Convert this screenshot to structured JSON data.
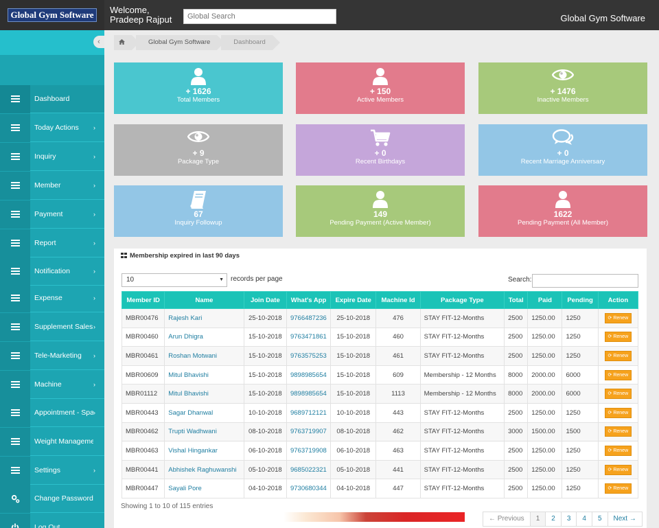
{
  "header": {
    "logo_text": "Global Gym Software",
    "welcome": "Welcome,",
    "user_name": "Pradeep Rajput",
    "search_placeholder": "Global Search",
    "brand": "Global Gym Software"
  },
  "sidebar": {
    "items": [
      {
        "label": "Dashboard",
        "icon": "menu-icon",
        "arrow": ""
      },
      {
        "label": "Today Actions",
        "icon": "menu-icon",
        "arrow": "›"
      },
      {
        "label": "Inquiry",
        "icon": "menu-icon",
        "arrow": "›"
      },
      {
        "label": "Member",
        "icon": "menu-icon",
        "arrow": "›"
      },
      {
        "label": "Payment",
        "icon": "menu-icon",
        "arrow": "›"
      },
      {
        "label": "Report",
        "icon": "menu-icon",
        "arrow": "›"
      },
      {
        "label": "Notification",
        "icon": "menu-icon",
        "arrow": "›"
      },
      {
        "label": "Expense",
        "icon": "menu-icon",
        "arrow": "›"
      },
      {
        "label": "Supplement Sales",
        "icon": "menu-icon",
        "arrow": "›"
      },
      {
        "label": "Tele-Marketing",
        "icon": "menu-icon",
        "arrow": "›"
      },
      {
        "label": "Machine",
        "icon": "menu-icon",
        "arrow": "›"
      },
      {
        "label": "Appointment - Spa",
        "icon": "menu-icon",
        "arrow": "›"
      },
      {
        "label": "Weight Management",
        "icon": "menu-icon",
        "arrow": ""
      },
      {
        "label": "Settings",
        "icon": "menu-icon",
        "arrow": "›"
      },
      {
        "label": "Change Password",
        "icon": "cogs-icon",
        "arrow": ""
      },
      {
        "label": "Log Out",
        "icon": "power-icon",
        "arrow": ""
      }
    ],
    "collapse_glyph": "‹"
  },
  "breadcrumb": {
    "home_icon": "home-icon",
    "items": [
      "Global Gym Software",
      "Dashboard"
    ]
  },
  "tiles": [
    {
      "value": "+ 1626",
      "label": "Total Members",
      "icon": "user-icon",
      "color": "#4ac6cf"
    },
    {
      "value": "+ 150",
      "label": "Active Members",
      "icon": "user-icon",
      "color": "#e27b8c"
    },
    {
      "value": "+ 1476",
      "label": "Inactive Members",
      "icon": "eye-icon",
      "color": "#a7c97b"
    },
    {
      "value": "+ 9",
      "label": "Package Type",
      "icon": "eye-icon",
      "color": "#b5b5b5"
    },
    {
      "value": "+ 0",
      "label": "Recent Birthdays",
      "icon": "cart-icon",
      "color": "#c5a6da"
    },
    {
      "value": "+ 0",
      "label": "Recent Marriage Anniversary",
      "icon": "comments-icon",
      "color": "#93c6e6"
    },
    {
      "value": "67",
      "label": "Inquiry Followup",
      "icon": "book-icon",
      "color": "#93c6e6"
    },
    {
      "value": "149",
      "label": "Pending Payment (Active Member)",
      "icon": "user-icon",
      "color": "#a7c97b"
    },
    {
      "value": "1622",
      "label": "Pending Payment (All Member)",
      "icon": "user-icon",
      "color": "#e27b8c"
    }
  ],
  "panel": {
    "title": "Membership expired in last 90 days",
    "length_value": "10",
    "length_label": "records per page",
    "search_label": "Search:",
    "columns": [
      "Member ID",
      "Name",
      "Join Date",
      "What's App",
      "Expire Date",
      "Machine Id",
      "Package Type",
      "Total",
      "Paid",
      "Pending",
      "Action"
    ],
    "rows": [
      [
        "MBR00476",
        "Rajesh Kari",
        "25-10-2018",
        "9766487236",
        "25-10-2018",
        "476",
        "STAY FIT-12-Months",
        "2500",
        "1250.00",
        "1250"
      ],
      [
        "MBR00460",
        "Arun Dhigra",
        "15-10-2018",
        "9763471861",
        "15-10-2018",
        "460",
        "STAY FIT-12-Months",
        "2500",
        "1250.00",
        "1250"
      ],
      [
        "MBR00461",
        "Roshan Motwani",
        "15-10-2018",
        "9763575253",
        "15-10-2018",
        "461",
        "STAY FIT-12-Months",
        "2500",
        "1250.00",
        "1250"
      ],
      [
        "MBR00609",
        "Mitul Bhavishi",
        "15-10-2018",
        "9898985654",
        "15-10-2018",
        "609",
        "Membership - 12 Months",
        "8000",
        "2000.00",
        "6000"
      ],
      [
        "MBR01112",
        "Mitul Bhavishi",
        "15-10-2018",
        "9898985654",
        "15-10-2018",
        "1113",
        "Membership - 12 Months",
        "8000",
        "2000.00",
        "6000"
      ],
      [
        "MBR00443",
        "Sagar Dhanwal",
        "10-10-2018",
        "9689712121",
        "10-10-2018",
        "443",
        "STAY FIT-12-Months",
        "2500",
        "1250.00",
        "1250"
      ],
      [
        "MBR00462",
        "Trupti Wadhwani",
        "08-10-2018",
        "9763719907",
        "08-10-2018",
        "462",
        "STAY FIT-12-Months",
        "3000",
        "1500.00",
        "1500"
      ],
      [
        "MBR00463",
        "Vishal Hingankar",
        "06-10-2018",
        "9763719908",
        "06-10-2018",
        "463",
        "STAY FIT-12-Months",
        "2500",
        "1250.00",
        "1250"
      ],
      [
        "MBR00441",
        "Abhishek Raghuwanshi",
        "05-10-2018",
        "9685022321",
        "05-10-2018",
        "441",
        "STAY FIT-12-Months",
        "2500",
        "1250.00",
        "1250"
      ],
      [
        "MBR00447",
        "Sayali Pore",
        "04-10-2018",
        "9730680344",
        "04-10-2018",
        "447",
        "STAY FIT-12-Months",
        "2500",
        "1250.00",
        "1250"
      ]
    ],
    "action_label": "Renew",
    "info": "Showing 1 to 10 of 115 entries",
    "pager": [
      "← Previous",
      "1",
      "2",
      "3",
      "4",
      "5",
      "Next →"
    ]
  }
}
